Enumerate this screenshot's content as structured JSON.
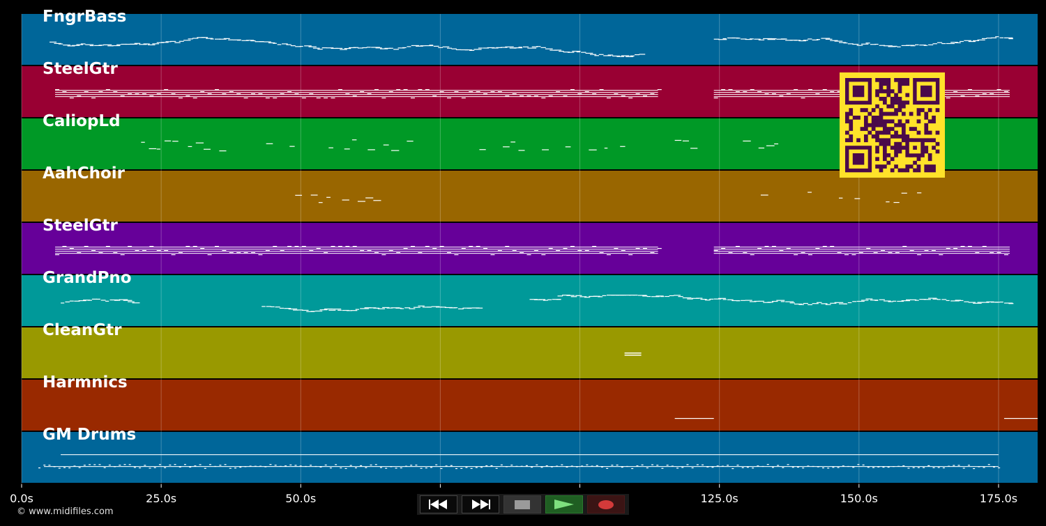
{
  "app": {
    "copyright": "© www.midifiles.com"
  },
  "timeline": {
    "max_seconds": 182,
    "tick_labels": [
      "0.0s",
      "25.0s",
      "50.0s",
      "75.0s",
      "100.0s",
      "125.0s",
      "150.0s",
      "175.0s"
    ],
    "tick_values": [
      0,
      25,
      50,
      75,
      100,
      125,
      150,
      175
    ]
  },
  "tracks": [
    {
      "name": "FngrBass",
      "color": "#006699"
    },
    {
      "name": "SteelGtr",
      "color": "#990033"
    },
    {
      "name": "CaliopLd",
      "color": "#009926"
    },
    {
      "name": "AahChoir",
      "color": "#996600"
    },
    {
      "name": "SteelGtr",
      "color": "#660099"
    },
    {
      "name": "GrandPno",
      "color": "#009999"
    },
    {
      "name": "CleanGtr",
      "color": "#999900"
    },
    {
      "name": "Harmnics",
      "color": "#992900"
    },
    {
      "name": "GM Drums",
      "color": "#006699"
    }
  ],
  "controls": {
    "rewind": "rewind-icon",
    "forward": "fast-forward-icon",
    "stop": "stop-icon",
    "play": "play-icon",
    "record": "record-icon"
  },
  "qr_code": {
    "color_bg": "#ffe22a",
    "color_fg": "#4a0a4a"
  }
}
